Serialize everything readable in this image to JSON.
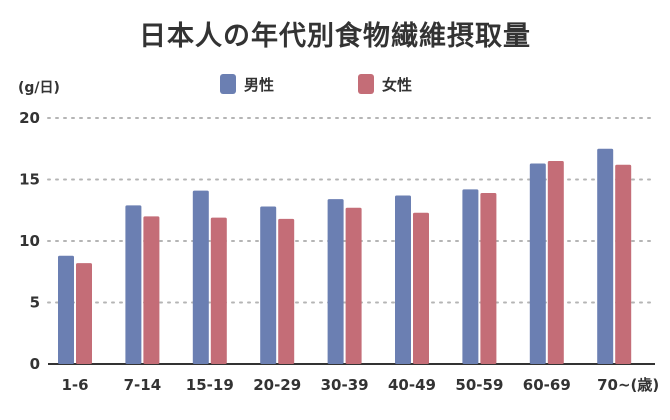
{
  "chart_data": {
    "type": "bar",
    "title": "日本人の年代別食物繊維摂取量",
    "ylabel": "(g/日)",
    "xunit": "(歳)",
    "categories": [
      "1-6",
      "7-14",
      "15-19",
      "20-29",
      "30-39",
      "40-49",
      "50-59",
      "60-69",
      "70~"
    ],
    "series": [
      {
        "name": "男性",
        "color": "#6b7fb2",
        "values": [
          8.8,
          12.9,
          14.1,
          12.8,
          13.4,
          13.7,
          14.2,
          16.3,
          17.5
        ]
      },
      {
        "name": "女性",
        "color": "#c46d77",
        "values": [
          8.2,
          12.0,
          11.9,
          11.8,
          12.7,
          12.3,
          13.9,
          16.5,
          16.2
        ]
      }
    ],
    "ylim": [
      0,
      20
    ],
    "yticks": [
      0,
      5,
      10,
      15,
      20
    ],
    "grid": true,
    "legend": "top"
  }
}
